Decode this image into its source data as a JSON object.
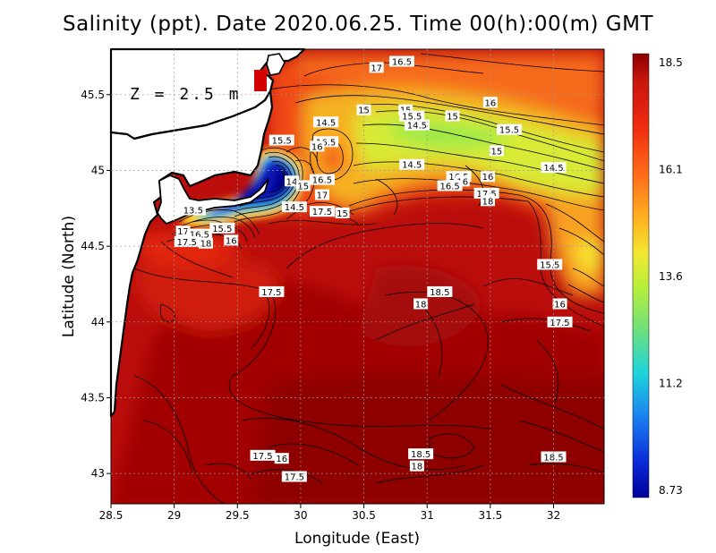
{
  "title": "Salinity (ppt). Date 2020.06.25. Time 00(h):00(m) GMT",
  "depth_label": "Z = 2.5 m",
  "x_axis": {
    "label": "Longitude (East)",
    "ticks": [
      "28.5",
      "29",
      "29.5",
      "30",
      "30.5",
      "31",
      "31.5",
      "32"
    ],
    "range": [
      28.5,
      32.4
    ]
  },
  "y_axis": {
    "label": "Latitude (North)",
    "ticks": [
      "43",
      "43.5",
      "44",
      "44.5",
      "45",
      "45.5"
    ],
    "range": [
      42.8,
      45.8
    ]
  },
  "colorbar": {
    "tick_labels": [
      "18.5",
      "16.1",
      "13.6",
      "11.2",
      "8.73"
    ],
    "range": [
      8.73,
      18.5
    ],
    "colors": [
      "#8b0000",
      "#c8150f",
      "#ee2a10",
      "#ff6a18",
      "#ffb020",
      "#f2e830",
      "#b4ef3c",
      "#6fe07a",
      "#1ed4dc",
      "#1a7ff0",
      "#0a2ad8",
      "#00009a"
    ]
  },
  "contour_labels": [
    {
      "text": "16.5",
      "lon": 30.8,
      "lat": 45.72
    },
    {
      "text": "17",
      "lon": 30.6,
      "lat": 45.68
    },
    {
      "text": "16",
      "lon": 31.5,
      "lat": 45.45
    },
    {
      "text": "15",
      "lon": 30.5,
      "lat": 45.4
    },
    {
      "text": "15",
      "lon": 30.83,
      "lat": 45.4
    },
    {
      "text": "15.5",
      "lon": 30.88,
      "lat": 45.36
    },
    {
      "text": "15",
      "lon": 31.2,
      "lat": 45.36
    },
    {
      "text": "14.5",
      "lon": 30.2,
      "lat": 45.32
    },
    {
      "text": "14.5",
      "lon": 30.92,
      "lat": 45.3
    },
    {
      "text": "15.5",
      "lon": 31.65,
      "lat": 45.27
    },
    {
      "text": "15.5",
      "lon": 29.85,
      "lat": 45.2
    },
    {
      "text": "16.5",
      "lon": 30.2,
      "lat": 45.19
    },
    {
      "text": "16",
      "lon": 30.13,
      "lat": 45.16
    },
    {
      "text": "15",
      "lon": 31.55,
      "lat": 45.13
    },
    {
      "text": "14.5",
      "lon": 30.88,
      "lat": 45.04
    },
    {
      "text": "14.5",
      "lon": 32.0,
      "lat": 45.02
    },
    {
      "text": "16.5",
      "lon": 31.25,
      "lat": 44.96
    },
    {
      "text": "16",
      "lon": 31.28,
      "lat": 44.93
    },
    {
      "text": "16.5",
      "lon": 31.18,
      "lat": 44.9
    },
    {
      "text": "16",
      "lon": 31.48,
      "lat": 44.96
    },
    {
      "text": "16.5",
      "lon": 30.17,
      "lat": 44.94
    },
    {
      "text": "14",
      "lon": 29.93,
      "lat": 44.93
    },
    {
      "text": "15",
      "lon": 30.02,
      "lat": 44.9
    },
    {
      "text": "17",
      "lon": 30.17,
      "lat": 44.84
    },
    {
      "text": "17.5",
      "lon": 31.47,
      "lat": 44.85
    },
    {
      "text": "18",
      "lon": 31.48,
      "lat": 44.8
    },
    {
      "text": "13.5",
      "lon": 29.15,
      "lat": 44.74
    },
    {
      "text": "14.5",
      "lon": 29.95,
      "lat": 44.76
    },
    {
      "text": "17.5",
      "lon": 30.17,
      "lat": 44.73
    },
    {
      "text": "15",
      "lon": 30.33,
      "lat": 44.72
    },
    {
      "text": "17",
      "lon": 29.07,
      "lat": 44.6
    },
    {
      "text": "16.5",
      "lon": 29.2,
      "lat": 44.58
    },
    {
      "text": "15.5",
      "lon": 29.38,
      "lat": 44.62
    },
    {
      "text": "17.5",
      "lon": 29.1,
      "lat": 44.53
    },
    {
      "text": "18",
      "lon": 29.25,
      "lat": 44.52
    },
    {
      "text": "16",
      "lon": 29.45,
      "lat": 44.54
    },
    {
      "text": "15.5",
      "lon": 31.97,
      "lat": 44.38
    },
    {
      "text": "17.5",
      "lon": 29.77,
      "lat": 44.2
    },
    {
      "text": "18.5",
      "lon": 31.1,
      "lat": 44.2
    },
    {
      "text": "18",
      "lon": 30.95,
      "lat": 44.12
    },
    {
      "text": "16",
      "lon": 32.05,
      "lat": 44.12
    },
    {
      "text": "17.5",
      "lon": 32.05,
      "lat": 44.0
    },
    {
      "text": "17.5",
      "lon": 29.7,
      "lat": 43.12
    },
    {
      "text": "16",
      "lon": 29.85,
      "lat": 43.1
    },
    {
      "text": "18.5",
      "lon": 30.95,
      "lat": 43.13
    },
    {
      "text": "18",
      "lon": 30.92,
      "lat": 43.05
    },
    {
      "text": "18.5",
      "lon": 32.0,
      "lat": 43.11
    },
    {
      "text": "17.5",
      "lon": 29.95,
      "lat": 42.98
    }
  ]
}
